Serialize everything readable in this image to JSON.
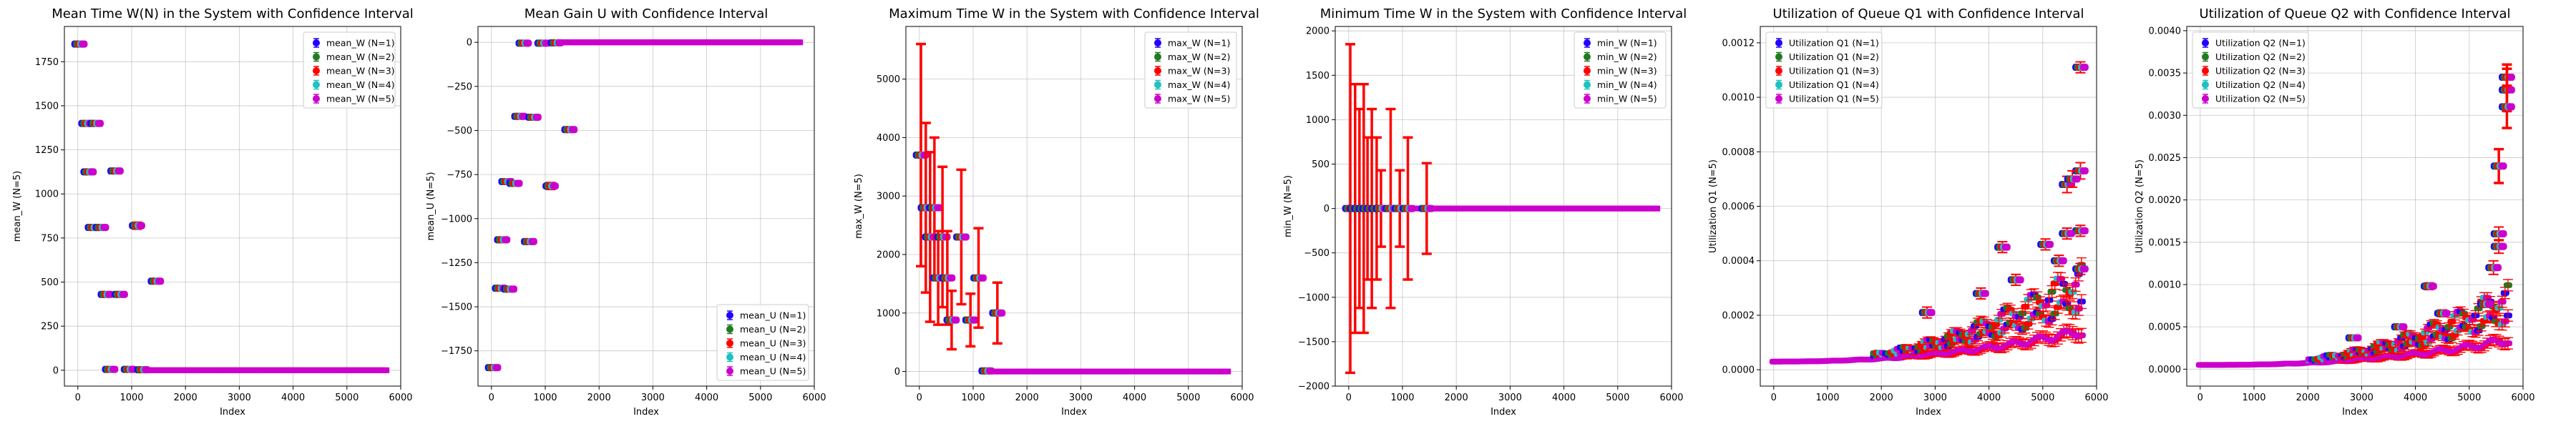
{
  "figure": {
    "panels": 6
  },
  "chart_data": [
    {
      "type": "scatter",
      "title": "Mean Time W(N) in the System with Confidence Interval",
      "xlabel": "Index",
      "ylabel": "mean_W (N=5)",
      "xlim": [
        -250,
        6000
      ],
      "ylim": [
        -90,
        1950
      ],
      "xticks": [
        0,
        1000,
        2000,
        3000,
        4000,
        5000,
        6000
      ],
      "yticks": [
        0,
        250,
        500,
        750,
        1000,
        1250,
        1500,
        1750
      ],
      "grid": true,
      "legend_position": "top-right",
      "series": [
        {
          "name": "mean_W (N=1)",
          "color": "#2200ff"
        },
        {
          "name": "mean_W (N=2)",
          "color": "#217a21"
        },
        {
          "name": "mean_W (N=3)",
          "color": "#ff0000"
        },
        {
          "name": "mean_W (N=4)",
          "color": "#20c0c0"
        },
        {
          "name": "mean_W (N=5)",
          "color": "#cc00cc"
        }
      ],
      "points": [
        {
          "x": 30,
          "y": 1850,
          "err": 12
        },
        {
          "x": 160,
          "y": 1400,
          "err": 15
        },
        {
          "x": 330,
          "y": 1400,
          "err": 15
        },
        {
          "x": 200,
          "y": 1125,
          "err": 15
        },
        {
          "x": 700,
          "y": 1130,
          "err": 15
        },
        {
          "x": 280,
          "y": 810,
          "err": 15
        },
        {
          "x": 430,
          "y": 810,
          "err": 12
        },
        {
          "x": 1100,
          "y": 820,
          "err": 20
        },
        {
          "x": 520,
          "y": 430,
          "err": 12
        },
        {
          "x": 780,
          "y": 430,
          "err": 12
        },
        {
          "x": 1450,
          "y": 505,
          "err": 10
        },
        {
          "x": 600,
          "y": 5,
          "err": 8
        },
        {
          "x": 950,
          "y": 5,
          "err": 8
        },
        {
          "x": 1200,
          "y": 3,
          "err": 5
        }
      ],
      "tail": {
        "from": 1300,
        "to": 5750,
        "y": 0
      }
    },
    {
      "type": "scatter",
      "title": "Mean Gain U with Confidence Interval",
      "xlabel": "Index",
      "ylabel": "mean_U (N=5)",
      "xlim": [
        -250,
        6000
      ],
      "ylim": [
        -1950,
        90
      ],
      "xticks": [
        0,
        1000,
        2000,
        3000,
        4000,
        5000,
        6000
      ],
      "yticks": [
        0,
        -250,
        -500,
        -750,
        -1000,
        -1250,
        -1500,
        -1750
      ],
      "grid": true,
      "legend_position": "bottom-right",
      "series": [
        {
          "name": "mean_U (N=1)",
          "color": "#2200ff"
        },
        {
          "name": "mean_U (N=2)",
          "color": "#217a21"
        },
        {
          "name": "mean_U (N=3)",
          "color": "#ff0000"
        },
        {
          "name": "mean_U (N=4)",
          "color": "#20c0c0"
        },
        {
          "name": "mean_U (N=5)",
          "color": "#cc00cc"
        }
      ],
      "points": [
        {
          "x": 30,
          "y": -1845,
          "err": 12
        },
        {
          "x": 160,
          "y": -1395,
          "err": 15
        },
        {
          "x": 330,
          "y": -1400,
          "err": 15
        },
        {
          "x": 200,
          "y": -1120,
          "err": 15
        },
        {
          "x": 700,
          "y": -1130,
          "err": 15
        },
        {
          "x": 280,
          "y": -790,
          "err": 15
        },
        {
          "x": 430,
          "y": -800,
          "err": 12
        },
        {
          "x": 1100,
          "y": -815,
          "err": 20
        },
        {
          "x": 520,
          "y": -420,
          "err": 12
        },
        {
          "x": 780,
          "y": -425,
          "err": 12
        },
        {
          "x": 1450,
          "y": -495,
          "err": 10
        },
        {
          "x": 600,
          "y": -5,
          "err": 8
        },
        {
          "x": 950,
          "y": -5,
          "err": 8
        },
        {
          "x": 1200,
          "y": -3,
          "err": 5
        }
      ],
      "tail": {
        "from": 1300,
        "to": 5750,
        "y": 0
      }
    },
    {
      "type": "scatter",
      "title": "Maximum Time W in the System with Confidence Interval",
      "xlabel": "Index",
      "ylabel": "max_W (N=5)",
      "xlim": [
        -250,
        6000
      ],
      "ylim": [
        -250,
        5900
      ],
      "xticks": [
        0,
        1000,
        2000,
        3000,
        4000,
        5000,
        6000
      ],
      "yticks": [
        0,
        1000,
        2000,
        3000,
        4000,
        5000
      ],
      "grid": true,
      "legend_position": "top-right",
      "series": [
        {
          "name": "max_W (N=1)",
          "color": "#2200ff"
        },
        {
          "name": "max_W (N=2)",
          "color": "#217a21"
        },
        {
          "name": "max_W (N=3)",
          "color": "#ff0000"
        },
        {
          "name": "max_W (N=4)",
          "color": "#20c0c0"
        },
        {
          "name": "max_W (N=5)",
          "color": "#cc00cc"
        }
      ],
      "points": [
        {
          "x": 30,
          "y": 3700,
          "err": 1900
        },
        {
          "x": 120,
          "y": 2800,
          "err": 1450
        },
        {
          "x": 200,
          "y": 2300,
          "err": 1450
        },
        {
          "x": 280,
          "y": 2800,
          "err": 1200
        },
        {
          "x": 350,
          "y": 1600,
          "err": 800
        },
        {
          "x": 430,
          "y": 2300,
          "err": 1200
        },
        {
          "x": 520,
          "y": 1600,
          "err": 800
        },
        {
          "x": 600,
          "y": 880,
          "err": 500
        },
        {
          "x": 780,
          "y": 2300,
          "err": 1150
        },
        {
          "x": 950,
          "y": 880,
          "err": 450
        },
        {
          "x": 1100,
          "y": 1600,
          "err": 850
        },
        {
          "x": 1450,
          "y": 1000,
          "err": 520
        },
        {
          "x": 1250,
          "y": 10,
          "err": 15
        }
      ],
      "tail": {
        "from": 1300,
        "to": 5750,
        "y": 0
      }
    },
    {
      "type": "scatter",
      "title": "Minimum Time W in the System with Confidence Interval",
      "xlabel": "Index",
      "ylabel": "min_W (N=5)",
      "xlim": [
        -250,
        6000
      ],
      "ylim": [
        -2000,
        2050
      ],
      "xticks": [
        0,
        1000,
        2000,
        3000,
        4000,
        5000,
        6000
      ],
      "yticks": [
        -2000,
        -1500,
        -1000,
        -500,
        0,
        500,
        1000,
        1500,
        2000
      ],
      "grid": true,
      "legend_position": "top-right",
      "series": [
        {
          "name": "min_W (N=1)",
          "color": "#2200ff"
        },
        {
          "name": "min_W (N=2)",
          "color": "#217a21"
        },
        {
          "name": "min_W (N=3)",
          "color": "#ff0000"
        },
        {
          "name": "min_W (N=4)",
          "color": "#20c0c0"
        },
        {
          "name": "min_W (N=5)",
          "color": "#cc00cc"
        }
      ],
      "points": [
        {
          "x": 30,
          "y": 0,
          "err": 1850
        },
        {
          "x": 120,
          "y": 0,
          "err": 1400
        },
        {
          "x": 200,
          "y": 0,
          "err": 1120
        },
        {
          "x": 280,
          "y": 0,
          "err": 1400
        },
        {
          "x": 350,
          "y": 0,
          "err": 800
        },
        {
          "x": 430,
          "y": 0,
          "err": 1120
        },
        {
          "x": 520,
          "y": 0,
          "err": 800
        },
        {
          "x": 600,
          "y": 0,
          "err": 430
        },
        {
          "x": 780,
          "y": 0,
          "err": 1120
        },
        {
          "x": 950,
          "y": 0,
          "err": 430
        },
        {
          "x": 1100,
          "y": 0,
          "err": 800
        },
        {
          "x": 1450,
          "y": 0,
          "err": 510
        }
      ],
      "tail": {
        "from": 1300,
        "to": 5750,
        "y": 0
      }
    },
    {
      "type": "scatter",
      "title": "Utilization of Queue Q1 with Confidence Interval",
      "xlabel": "Index",
      "ylabel": "Utilization Q1 (N=5)",
      "xlim": [
        -250,
        6000
      ],
      "ylim": [
        -6e-05,
        0.00126
      ],
      "xticks": [
        0,
        1000,
        2000,
        3000,
        4000,
        5000,
        6000
      ],
      "yticks": [
        0.0,
        0.0002,
        0.0004,
        0.0006,
        0.0008,
        0.001,
        0.0012
      ],
      "ytick_labels": [
        "0.0000",
        "0.0002",
        "0.0004",
        "0.0006",
        "0.0008",
        "0.0010",
        "0.0012"
      ],
      "grid": true,
      "legend_position": "top-left",
      "series": [
        {
          "name": "Utilization Q1 (N=1)",
          "color": "#2200ff"
        },
        {
          "name": "Utilization Q1 (N=2)",
          "color": "#217a21"
        },
        {
          "name": "Utilization Q1 (N=3)",
          "color": "#ff0000"
        },
        {
          "name": "Utilization Q1 (N=4)",
          "color": "#20c0c0"
        },
        {
          "name": "Utilization Q1 (N=5)",
          "color": "#cc00cc"
        }
      ],
      "points": [
        {
          "x": 5700,
          "y": 0.00111,
          "err": 2e-05
        },
        {
          "x": 5700,
          "y": 0.00073,
          "err": 3e-05
        },
        {
          "x": 5450,
          "y": 0.00068,
          "err": 3e-05
        },
        {
          "x": 5550,
          "y": 0.0007,
          "err": 3e-05
        },
        {
          "x": 5700,
          "y": 0.00051,
          "err": 2e-05
        },
        {
          "x": 5450,
          "y": 0.0005,
          "err": 2e-05
        },
        {
          "x": 5050,
          "y": 0.00046,
          "err": 2e-05
        },
        {
          "x": 4250,
          "y": 0.00045,
          "err": 2e-05
        },
        {
          "x": 5300,
          "y": 0.0004,
          "err": 2e-05
        },
        {
          "x": 5700,
          "y": 0.00037,
          "err": 2e-05
        },
        {
          "x": 4500,
          "y": 0.00033,
          "err": 2e-05
        },
        {
          "x": 3850,
          "y": 0.00028,
          "err": 2e-05
        },
        {
          "x": 2850,
          "y": 0.00021,
          "err": 2e-05
        }
      ],
      "cloud": {
        "from": 0,
        "to": 5750,
        "base": 3e-05,
        "top": 0.00035,
        "power": 2.2
      }
    },
    {
      "type": "scatter",
      "title": "Utilization of Queue Q2 with Confidence Interval",
      "xlabel": "Index",
      "ylabel": "Utilization Q2 (N=5)",
      "xlim": [
        -250,
        6000
      ],
      "ylim": [
        -0.0002,
        0.00405
      ],
      "xticks": [
        0,
        1000,
        2000,
        3000,
        4000,
        5000,
        6000
      ],
      "yticks": [
        0.0,
        0.0005,
        0.001,
        0.0015,
        0.002,
        0.0025,
        0.003,
        0.0035,
        0.004
      ],
      "ytick_labels": [
        "0.0000",
        "0.0005",
        "0.0010",
        "0.0015",
        "0.0020",
        "0.0025",
        "0.0030",
        "0.0035",
        "0.0040"
      ],
      "grid": true,
      "legend_position": "top-left",
      "series": [
        {
          "name": "Utilization Q2 (N=1)",
          "color": "#2200ff"
        },
        {
          "name": "Utilization Q2 (N=2)",
          "color": "#217a21"
        },
        {
          "name": "Utilization Q2 (N=3)",
          "color": "#ff0000"
        },
        {
          "name": "Utilization Q2 (N=4)",
          "color": "#20c0c0"
        },
        {
          "name": "Utilization Q2 (N=5)",
          "color": "#cc00cc"
        }
      ],
      "points": [
        {
          "x": 5700,
          "y": 0.00345,
          "err": 0.00015
        },
        {
          "x": 5700,
          "y": 0.0033,
          "err": 0.00025
        },
        {
          "x": 5700,
          "y": 0.0031,
          "err": 0.00025
        },
        {
          "x": 5550,
          "y": 0.0024,
          "err": 0.0002
        },
        {
          "x": 5550,
          "y": 0.0016,
          "err": 8e-05
        },
        {
          "x": 5550,
          "y": 0.00145,
          "err": 8e-05
        },
        {
          "x": 5450,
          "y": 0.0012,
          "err": 8e-05
        },
        {
          "x": 4250,
          "y": 0.00098,
          "err": 4e-05
        },
        {
          "x": 5300,
          "y": 0.00077,
          "err": 4e-05
        },
        {
          "x": 4500,
          "y": 0.00066,
          "err": 4e-05
        },
        {
          "x": 3700,
          "y": 0.0005,
          "err": 3e-05
        },
        {
          "x": 2850,
          "y": 0.00037,
          "err": 3e-05
        }
      ],
      "cloud": {
        "from": 0,
        "to": 5750,
        "base": 5e-05,
        "top": 0.0009,
        "power": 2.4
      }
    }
  ]
}
